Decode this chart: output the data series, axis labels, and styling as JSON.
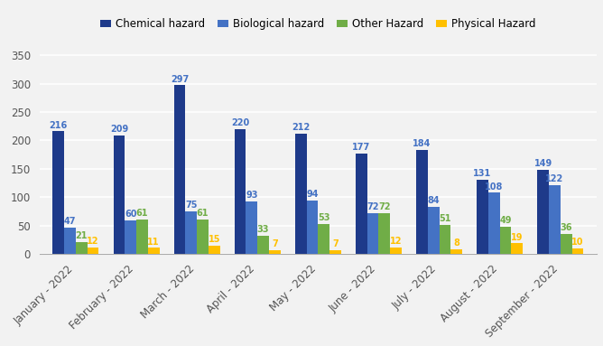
{
  "months": [
    "January - 2022",
    "February - 2022",
    "March - 2022",
    "April - 2022",
    "May - 2022",
    "June - 2022",
    "July - 2022",
    "August - 2022",
    "September - 2022"
  ],
  "chemical": [
    216,
    209,
    297,
    220,
    212,
    177,
    184,
    131,
    149
  ],
  "biological": [
    47,
    60,
    75,
    93,
    94,
    72,
    84,
    108,
    122
  ],
  "other": [
    21,
    61,
    61,
    33,
    53,
    72,
    51,
    49,
    36
  ],
  "physical": [
    12,
    11,
    15,
    7,
    7,
    12,
    8,
    19,
    10
  ],
  "chemical_color": "#1E3A8A",
  "biological_color": "#4472C4",
  "other_color": "#70AD47",
  "physical_color": "#FFC000",
  "chemical_label": "Chemical hazard",
  "biological_label": "Biological hazard",
  "other_label": "Other Hazard",
  "physical_label": "Physical Hazard",
  "ylim": [
    0,
    375
  ],
  "yticks": [
    0,
    50,
    100,
    150,
    200,
    250,
    300,
    350
  ],
  "bar_width": 0.19,
  "label_fontsize": 7.0,
  "tick_fontsize": 8.5,
  "legend_fontsize": 8.5,
  "background_color": "#F2F2F2",
  "plot_bg_color": "#F2F2F2",
  "grid_color": "#FFFFFF"
}
